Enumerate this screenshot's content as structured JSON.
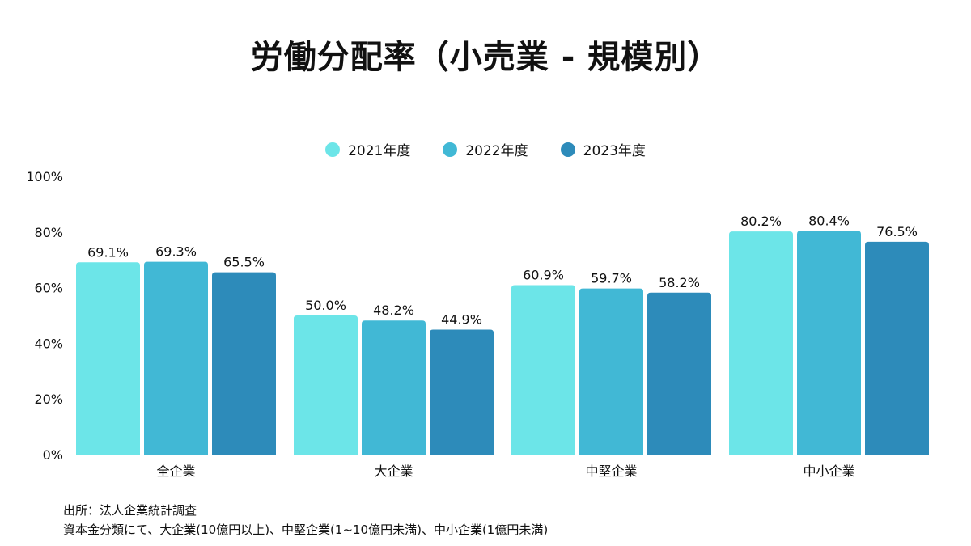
{
  "title": "労働分配率（小売業 - 規模別）",
  "footnote": {
    "source": "出所：法人企業統計調査",
    "definition": "資本金分類にて、大企業(10億円以上)、中堅企業(1~10億円未満)、中小企業(1億円未満)"
  },
  "chart_data": {
    "type": "bar",
    "categories": [
      "全企業",
      "大企業",
      "中堅企業",
      "中小企業"
    ],
    "series": [
      {
        "name": "2021年度",
        "color": "#6ce5e8",
        "values": [
          69.1,
          50.0,
          60.9,
          80.2
        ]
      },
      {
        "name": "2022年度",
        "color": "#41b8d5",
        "values": [
          69.3,
          48.2,
          59.7,
          80.4
        ]
      },
      {
        "name": "2023年度",
        "color": "#2d8bba",
        "values": [
          65.5,
          44.9,
          58.2,
          76.5
        ]
      }
    ],
    "ylim": [
      0,
      100
    ],
    "yticks": [
      "0%",
      "20%",
      "40%",
      "60%",
      "80%",
      "100%"
    ],
    "grid": false,
    "legend_position": "top-center",
    "value_label_format": "%.1f%"
  }
}
